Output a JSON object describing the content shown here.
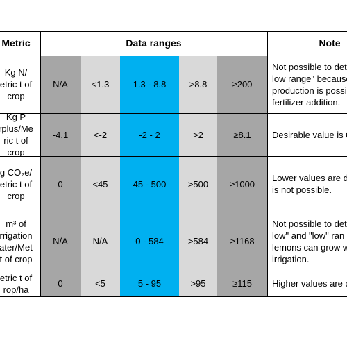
{
  "header": {
    "metric": "Metric",
    "data_ranges": "Data ranges",
    "notes": "Note"
  },
  "rows": [
    {
      "metric": [
        "Kg N/",
        "etric t of",
        "crop"
      ],
      "cells": [
        "N/A",
        "<1.3",
        "1.3 - 8.8",
        ">8.8",
        "≥200"
      ],
      "notes": [
        "Not possible to det",
        "low range\" because",
        "production is possi",
        "fertilizer addition."
      ]
    },
    {
      "metric": [
        "Kg P",
        "rplus/Me",
        "ric t of",
        "crop"
      ],
      "cells": [
        "-4.1",
        "<-2",
        "-2 - 2",
        ">2",
        "≥8.1"
      ],
      "notes": [
        "Desirable value is 0"
      ]
    },
    {
      "metric": [
        "g CO₂e/",
        "etric t of",
        "crop"
      ],
      "cells": [
        "0",
        "<45",
        "45 - 500",
        ">500",
        "≥1000"
      ],
      "notes": [
        "Lower values are d",
        "is not possible."
      ]
    },
    {
      "metric": [
        "m³ of",
        "rrigation",
        "ater/Met",
        "t of crop"
      ],
      "cells": [
        "N/A",
        "N/A",
        "0 - 584",
        ">584",
        "≥1168"
      ],
      "notes": [
        "Not possible to det",
        "low\" and \"low\" ran",
        "lemons can grow w",
        "irrigation."
      ]
    },
    {
      "metric": [
        "etric t of",
        "rop/ha"
      ],
      "cells": [
        "0",
        "<5",
        "5 - 95",
        ">95",
        "≥115"
      ],
      "notes": [
        "Higher values are d"
      ]
    }
  ]
}
